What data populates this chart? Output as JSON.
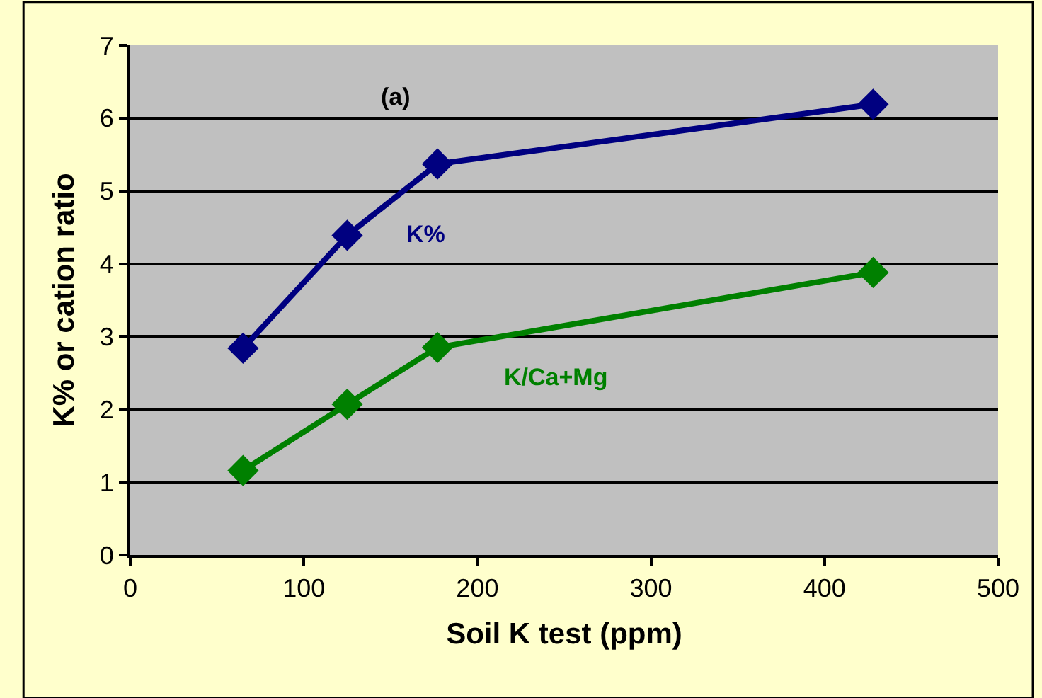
{
  "chart_data": {
    "type": "line",
    "xlabel": "Soil K test (ppm)",
    "ylabel": "K% or cation ratio",
    "annotations": [
      "(a)"
    ],
    "x": [
      65,
      125,
      177,
      428
    ],
    "series": [
      {
        "name": "K%",
        "color": "#000080",
        "values": [
          2.84,
          4.39,
          5.37,
          6.19
        ]
      },
      {
        "name": "K/Ca+Mg",
        "color": "#008000",
        "values": [
          1.16,
          2.07,
          2.85,
          3.88
        ]
      }
    ],
    "xlim": [
      0,
      500
    ],
    "xticks": [
      0,
      100,
      200,
      300,
      400,
      500
    ],
    "ylim": [
      0,
      7
    ],
    "yticks": [
      0,
      1,
      2,
      3,
      4,
      5,
      6,
      7
    ],
    "grid": "y",
    "legend": false,
    "marker": "diamond",
    "line_style": "solid"
  }
}
